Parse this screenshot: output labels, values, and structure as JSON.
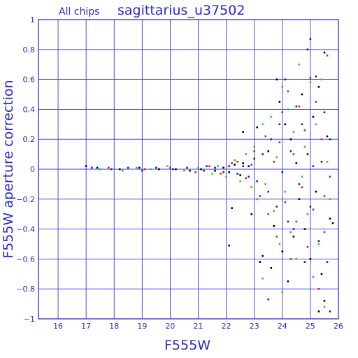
{
  "header": {
    "subset_label": "All chips",
    "title": "sagittarius_u37502"
  },
  "colors": {
    "frame": "#3b3bd4",
    "grid": "#3b3bd4",
    "text": "#2a2ac8",
    "series_black": "#000000",
    "series_red": "#e01a1a",
    "series_green": "#19d419",
    "series_blue": "#1a1ad4"
  },
  "chart_data": {
    "type": "scatter",
    "xlabel": "F555W",
    "ylabel": "F555W aperture correction",
    "xlim": [
      15.3,
      26
    ],
    "ylim": [
      -1,
      1
    ],
    "xticks": [
      16,
      17,
      18,
      19,
      20,
      21,
      22,
      23,
      24,
      25,
      26
    ],
    "yticks": [
      -1,
      -0.8,
      -0.6,
      -0.4,
      -0.2,
      0,
      0.2,
      0.4,
      0.6,
      0.8,
      1
    ],
    "ytick_labels": [
      "−1",
      "−0.8",
      "−0.6",
      "−0.4",
      "−0.2",
      "0",
      "0.2",
      "0.4",
      "0.6",
      "0.8",
      "1"
    ],
    "grid": true,
    "series": [
      {
        "color": "#000000",
        "points": [
          [
            17.0,
            0.02
          ],
          [
            17.4,
            0.01
          ],
          [
            18.2,
            0.0
          ],
          [
            18.9,
            0.01
          ],
          [
            19.6,
            0.0
          ],
          [
            20.2,
            0.0
          ],
          [
            20.7,
            -0.01
          ],
          [
            21.1,
            0.0
          ],
          [
            21.6,
            -0.01
          ],
          [
            21.9,
            0.01
          ],
          [
            22.1,
            -0.02
          ],
          [
            22.3,
            0.03
          ],
          [
            22.5,
            -0.04
          ],
          [
            22.6,
            0.04
          ],
          [
            22.8,
            0.02
          ],
          [
            22.6,
            0.25
          ],
          [
            22.1,
            -0.51
          ],
          [
            22.2,
            -0.26
          ],
          [
            22.9,
            -0.3
          ],
          [
            23.1,
            0.28
          ],
          [
            23.2,
            -0.62
          ],
          [
            23.3,
            -0.58
          ],
          [
            23.5,
            0.12
          ],
          [
            23.6,
            -0.66
          ],
          [
            23.7,
            -0.38
          ],
          [
            23.8,
            0.6
          ],
          [
            23.9,
            0.45
          ],
          [
            24.0,
            -0.55
          ],
          [
            24.1,
            0.3
          ],
          [
            24.2,
            -0.75
          ],
          [
            24.3,
            0.2
          ],
          [
            24.4,
            -0.45
          ],
          [
            24.5,
            0.04
          ],
          [
            24.6,
            -0.2
          ],
          [
            24.7,
            0.5
          ],
          [
            24.8,
            -0.4
          ],
          [
            24.9,
            0.1
          ],
          [
            25.0,
            -0.6
          ],
          [
            25.1,
            0.35
          ],
          [
            25.2,
            -0.15
          ],
          [
            25.3,
            0.55
          ],
          [
            25.4,
            -0.7
          ],
          [
            25.5,
            0.78
          ],
          [
            25.6,
            0.22
          ],
          [
            25.7,
            -0.33
          ],
          [
            25.5,
            -0.88
          ],
          [
            25.3,
            -0.95
          ],
          [
            25.8,
            -0.36
          ]
        ]
      },
      {
        "color": "#e01a1a",
        "points": [
          [
            17.8,
            0.01
          ],
          [
            19.1,
            0.0
          ],
          [
            20.0,
            0.01
          ],
          [
            20.9,
            -0.02
          ],
          [
            21.4,
            0.02
          ],
          [
            21.8,
            -0.03
          ],
          [
            22.2,
            0.04
          ],
          [
            22.4,
            0.05
          ],
          [
            22.7,
            -0.06
          ],
          [
            22.9,
            0.03
          ],
          [
            23.0,
            0.12
          ],
          [
            23.2,
            -0.18
          ],
          [
            23.4,
            0.22
          ],
          [
            23.5,
            -0.3
          ],
          [
            23.7,
            0.05
          ],
          [
            23.8,
            -0.45
          ],
          [
            23.9,
            0.18
          ],
          [
            24.0,
            0.38
          ],
          [
            24.1,
            -0.22
          ],
          [
            24.2,
            0.52
          ],
          [
            24.3,
            -0.6
          ],
          [
            24.4,
            0.1
          ],
          [
            24.5,
            -0.35
          ],
          [
            24.6,
            0.42
          ],
          [
            24.7,
            -0.12
          ],
          [
            24.8,
            0.26
          ],
          [
            24.9,
            -0.52
          ],
          [
            25.0,
            0.61
          ],
          [
            25.1,
            -0.27
          ],
          [
            25.2,
            0.45
          ],
          [
            25.3,
            -0.8
          ],
          [
            25.4,
            0.2
          ],
          [
            25.5,
            -0.42
          ],
          [
            25.6,
            0.76
          ],
          [
            25.7,
            -0.05
          ],
          [
            25.5,
            -0.18
          ]
        ]
      },
      {
        "color": "#19d419",
        "points": [
          [
            17.5,
            0.0
          ],
          [
            18.3,
            -0.01
          ],
          [
            18.8,
            0.01
          ],
          [
            19.3,
            0.0
          ],
          [
            19.9,
            0.02
          ],
          [
            20.5,
            -0.01
          ],
          [
            21.0,
            0.01
          ],
          [
            21.5,
            -0.03
          ],
          [
            21.7,
            0.02
          ],
          [
            22.0,
            -0.05
          ],
          [
            22.3,
            0.06
          ],
          [
            22.5,
            -0.08
          ],
          [
            22.7,
            0.1
          ],
          [
            22.9,
            -0.12
          ],
          [
            23.0,
            0.15
          ],
          [
            23.1,
            -0.2
          ],
          [
            23.3,
            0.3
          ],
          [
            23.4,
            -0.1
          ],
          [
            23.6,
            0.35
          ],
          [
            23.7,
            -0.28
          ],
          [
            23.8,
            0.08
          ],
          [
            23.9,
            -0.5
          ],
          [
            24.0,
            0.55
          ],
          [
            24.1,
            -0.15
          ],
          [
            24.2,
            0.4
          ],
          [
            24.3,
            -0.42
          ],
          [
            24.4,
            0.25
          ],
          [
            24.5,
            -0.6
          ],
          [
            24.6,
            0.7
          ],
          [
            24.7,
            -0.05
          ],
          [
            24.8,
            0.15
          ],
          [
            24.9,
            -0.3
          ],
          [
            25.0,
            0.58
          ],
          [
            25.1,
            -0.72
          ],
          [
            25.2,
            0.3
          ],
          [
            25.3,
            -0.5
          ],
          [
            25.4,
            0.6
          ],
          [
            25.5,
            -0.92
          ],
          [
            25.6,
            0.05
          ],
          [
            25.7,
            -0.2
          ],
          [
            23.3,
            -0.73
          ],
          [
            24.0,
            -0.82
          ]
        ]
      },
      {
        "color": "#1a1ad4",
        "points": [
          [
            17.2,
            0.01
          ],
          [
            17.9,
            0.0
          ],
          [
            18.5,
            0.01
          ],
          [
            19.0,
            -0.01
          ],
          [
            19.5,
            0.01
          ],
          [
            20.1,
            0.0
          ],
          [
            20.6,
            0.01
          ],
          [
            21.2,
            -0.01
          ],
          [
            21.3,
            0.02
          ],
          [
            21.6,
            0.01
          ],
          [
            21.9,
            -0.02
          ],
          [
            22.1,
            0.02
          ],
          [
            22.4,
            -0.03
          ],
          [
            22.6,
            0.02
          ],
          [
            22.8,
            -0.05
          ],
          [
            23.0,
            0.07
          ],
          [
            23.1,
            -0.08
          ],
          [
            23.3,
            0.1
          ],
          [
            23.5,
            -0.15
          ],
          [
            23.6,
            0.2
          ],
          [
            23.8,
            -0.25
          ],
          [
            23.9,
            0.3
          ],
          [
            24.0,
            -0.02
          ],
          [
            24.1,
            0.6
          ],
          [
            24.2,
            -0.35
          ],
          [
            24.3,
            0.12
          ],
          [
            24.4,
            -0.4
          ],
          [
            24.5,
            0.42
          ],
          [
            24.6,
            -0.1
          ],
          [
            24.7,
            0.3
          ],
          [
            24.8,
            -0.62
          ],
          [
            24.9,
            0.8
          ],
          [
            25.0,
            -0.25
          ],
          [
            25.1,
            0.02
          ],
          [
            25.2,
            0.62
          ],
          [
            25.3,
            -0.48
          ],
          [
            25.4,
            0.05
          ],
          [
            25.5,
            0.38
          ],
          [
            25.6,
            -0.62
          ],
          [
            25.7,
            0.2
          ],
          [
            25.0,
            0.87
          ],
          [
            25.7,
            -0.95
          ],
          [
            23.5,
            -0.87
          ]
        ]
      }
    ]
  }
}
